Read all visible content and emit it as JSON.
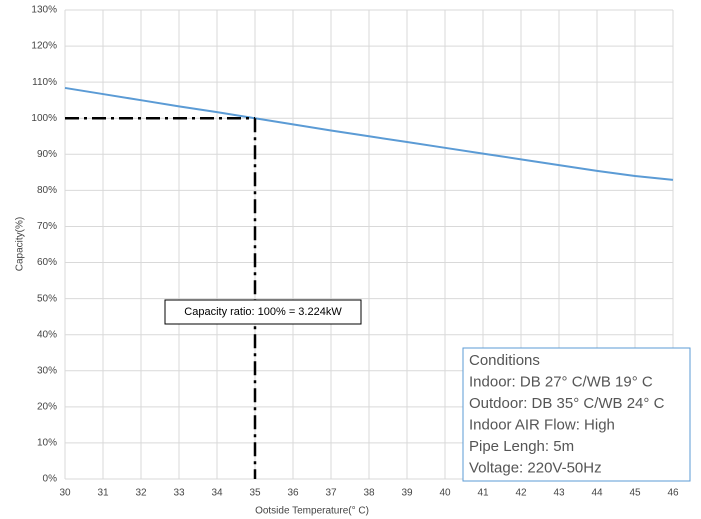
{
  "chart_data": {
    "type": "line",
    "x_label": "Ootside Temperature(° C)",
    "y_label": "Capacity(%)",
    "x": [
      30,
      31,
      32,
      33,
      34,
      35,
      36,
      37,
      38,
      39,
      40,
      41,
      42,
      43,
      44,
      45,
      46
    ],
    "series": [
      {
        "name": "Capacity",
        "color": "#5b9bd5",
        "values": [
          108.4,
          106.7,
          105.0,
          103.3,
          101.7,
          100,
          98.3,
          96.6,
          95.0,
          93.4,
          91.8,
          90.2,
          88.6,
          87.0,
          85.4,
          84.0,
          82.9
        ]
      }
    ],
    "xlim": [
      30,
      46
    ],
    "xticks": [
      30,
      31,
      32,
      33,
      34,
      35,
      36,
      37,
      38,
      39,
      40,
      41,
      42,
      43,
      44,
      45,
      46
    ],
    "ylim": [
      0,
      130
    ],
    "yticks": [
      {
        "value": 0,
        "label": "0%"
      },
      {
        "value": 10,
        "label": "10%"
      },
      {
        "value": 20,
        "label": "20%"
      },
      {
        "value": 30,
        "label": "30%"
      },
      {
        "value": 40,
        "label": "40%"
      },
      {
        "value": 50,
        "label": "50%"
      },
      {
        "value": 60,
        "label": "60%"
      },
      {
        "value": 70,
        "label": "70%"
      },
      {
        "value": 80,
        "label": "80%"
      },
      {
        "value": 90,
        "label": "90%"
      },
      {
        "value": 100,
        "label": "100%"
      },
      {
        "value": 110,
        "label": "110%"
      },
      {
        "value": 120,
        "label": "120%"
      },
      {
        "value": 130,
        "label": "130%"
      }
    ],
    "grid": true,
    "reference_point": {
      "x": 35,
      "y": 100
    },
    "annotation": "Capacity ratio: 100% = 3.224kW",
    "conditions": [
      "Conditions",
      "Indoor: DB 27°  C/WB 19°  C",
      "Outdoor: DB 35°  C/WB 24°  C",
      "Indoor AIR Flow: High",
      "Pipe Lengh: 5m",
      "Voltage: 220V-50Hz"
    ]
  }
}
